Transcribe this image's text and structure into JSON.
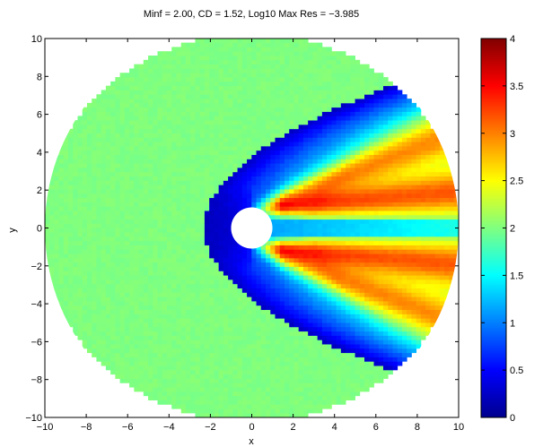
{
  "chart_data": {
    "type": "heatmap",
    "title": "Minf =  2.00, CD = 1.52, Log10 Max Res =  −3.985",
    "xlabel": "x",
    "ylabel": "y",
    "xlim": [
      -10,
      10
    ],
    "ylim": [
      -10,
      10
    ],
    "xticks": [
      -10,
      -8,
      -6,
      -4,
      -2,
      0,
      2,
      4,
      6,
      8,
      10
    ],
    "yticks": [
      -10,
      -8,
      -6,
      -4,
      -2,
      0,
      2,
      4,
      6,
      8,
      10
    ],
    "xtick_labels": [
      "−10",
      "−8",
      "−6",
      "−4",
      "−2",
      "0",
      "2",
      "4",
      "6",
      "8",
      "10"
    ],
    "ytick_labels": [
      "−10",
      "−8",
      "−6",
      "−4",
      "−2",
      "0",
      "2",
      "4",
      "6",
      "8",
      "10"
    ],
    "colormap": "jet",
    "clim": [
      0,
      4
    ],
    "colorbar_ticks": [
      0,
      0.5,
      1,
      1.5,
      2,
      2.5,
      3,
      3.5,
      4
    ],
    "colorbar_tick_labels": [
      "0",
      "0.5",
      "1",
      "1.5",
      "2",
      "2.5",
      "3",
      "3.5",
      "4"
    ],
    "domain_radius": 10,
    "body_radius": 1,
    "freestream_value": 2.0,
    "grid": false
  }
}
